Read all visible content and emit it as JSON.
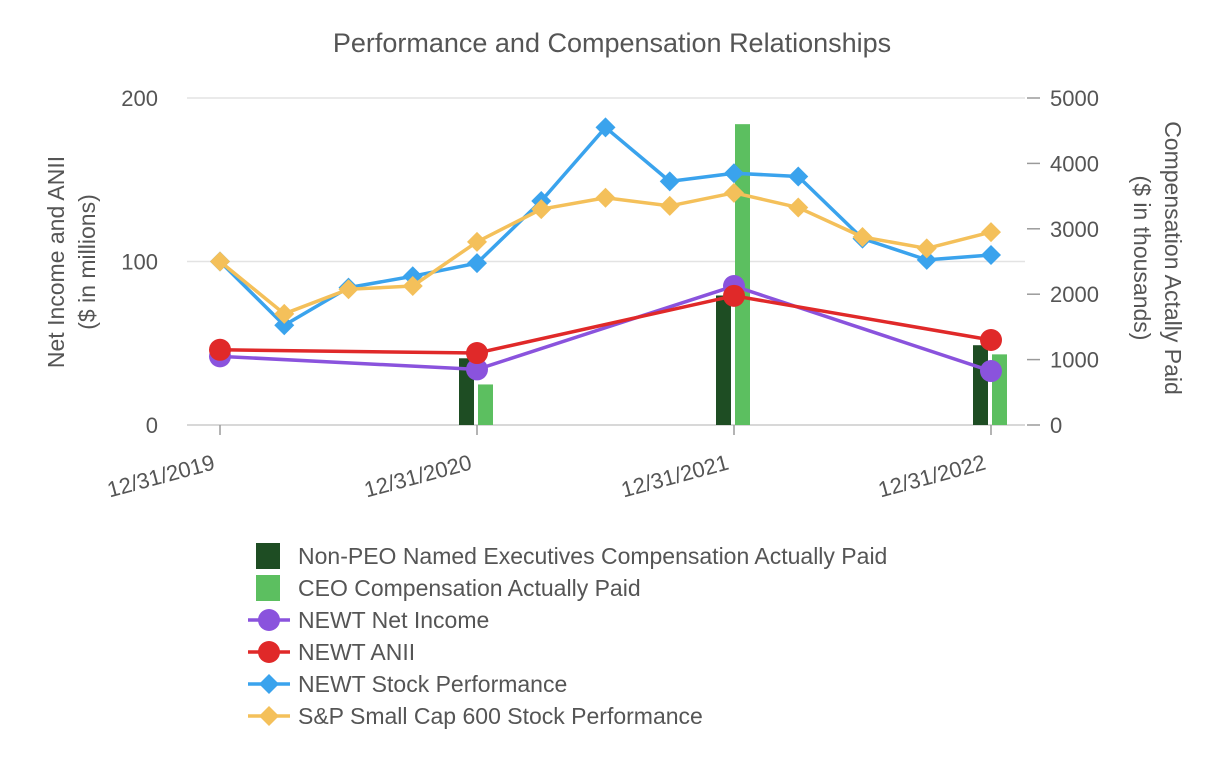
{
  "chart_data": {
    "type": "combo-bar-line",
    "title": "Performance and Compensation Relationships",
    "ylabel_left": [
      "Net Income and ANII",
      "($ in millions)"
    ],
    "ylabel_right": [
      "Compensation Actally Paid",
      "($ in thousands)"
    ],
    "ylim_left": [
      0,
      200
    ],
    "ylim_right": [
      0,
      5000
    ],
    "yticks_left": [
      "0",
      "100",
      "200"
    ],
    "yticks_right": [
      "0",
      "1000",
      "2000",
      "3000",
      "4000",
      "5000"
    ],
    "x_tick_labels": [
      "12/31/2019",
      "12/31/2020",
      "12/31/2021",
      "12/31/2022"
    ],
    "x_range": [
      0,
      12
    ],
    "x_tick_positions": [
      0,
      4,
      8,
      12
    ],
    "bar_series": [
      {
        "name": "Non-PEO Named Executives Compensation Actually Paid",
        "color": "#1e4d23",
        "axis": "right",
        "x": [
          4,
          8,
          12
        ],
        "values": [
          1020,
          1980,
          1220
        ]
      },
      {
        "name": "CEO Compensation Actually Paid",
        "color": "#5cbf60",
        "axis": "right",
        "x": [
          4,
          8,
          12
        ],
        "values": [
          620,
          4600,
          1080
        ]
      }
    ],
    "line_series": [
      {
        "name": "NEWT Net Income",
        "color": "#8a53dd",
        "marker": "circle",
        "axis": "left",
        "x": [
          0,
          4,
          8,
          12
        ],
        "values": [
          42,
          34,
          85,
          33
        ]
      },
      {
        "name": "NEWT ANII",
        "color": "#e02929",
        "marker": "circle",
        "axis": "left",
        "x": [
          0,
          4,
          8,
          12
        ],
        "values": [
          46,
          44,
          79,
          52
        ]
      },
      {
        "name": "NEWT Stock Performance",
        "color": "#3aa3ed",
        "marker": "diamond",
        "axis": "left",
        "x": [
          0,
          1,
          2,
          3,
          4,
          5,
          6,
          7,
          8,
          9,
          10,
          11,
          12
        ],
        "values": [
          100,
          61,
          84,
          91,
          99,
          137,
          182,
          149,
          154,
          152,
          114,
          101,
          104
        ]
      },
      {
        "name": "S&P Small Cap 600 Stock Performance",
        "color": "#f4c05a",
        "marker": "diamond",
        "axis": "left",
        "x": [
          0,
          1,
          2,
          3,
          4,
          5,
          6,
          7,
          8,
          9,
          10,
          11,
          12
        ],
        "values": [
          100,
          68,
          83,
          85,
          112,
          132,
          139,
          134,
          142,
          133,
          115,
          108,
          118
        ]
      }
    ],
    "legend": [
      {
        "label": "Non-PEO Named Executives Compensation Actually Paid",
        "kind": "bar",
        "color": "#1e4d23"
      },
      {
        "label": "CEO Compensation Actually Paid",
        "kind": "bar",
        "color": "#5cbf60"
      },
      {
        "label": "NEWT Net Income",
        "kind": "line-circle",
        "color": "#8a53dd"
      },
      {
        "label": "NEWT ANII",
        "kind": "line-circle",
        "color": "#e02929"
      },
      {
        "label": "NEWT Stock Performance",
        "kind": "line-diamond",
        "color": "#3aa3ed"
      },
      {
        "label": "S&P Small Cap 600 Stock Performance",
        "kind": "line-diamond",
        "color": "#f4c05a"
      }
    ],
    "legend_position": "bottom",
    "grid": true
  }
}
